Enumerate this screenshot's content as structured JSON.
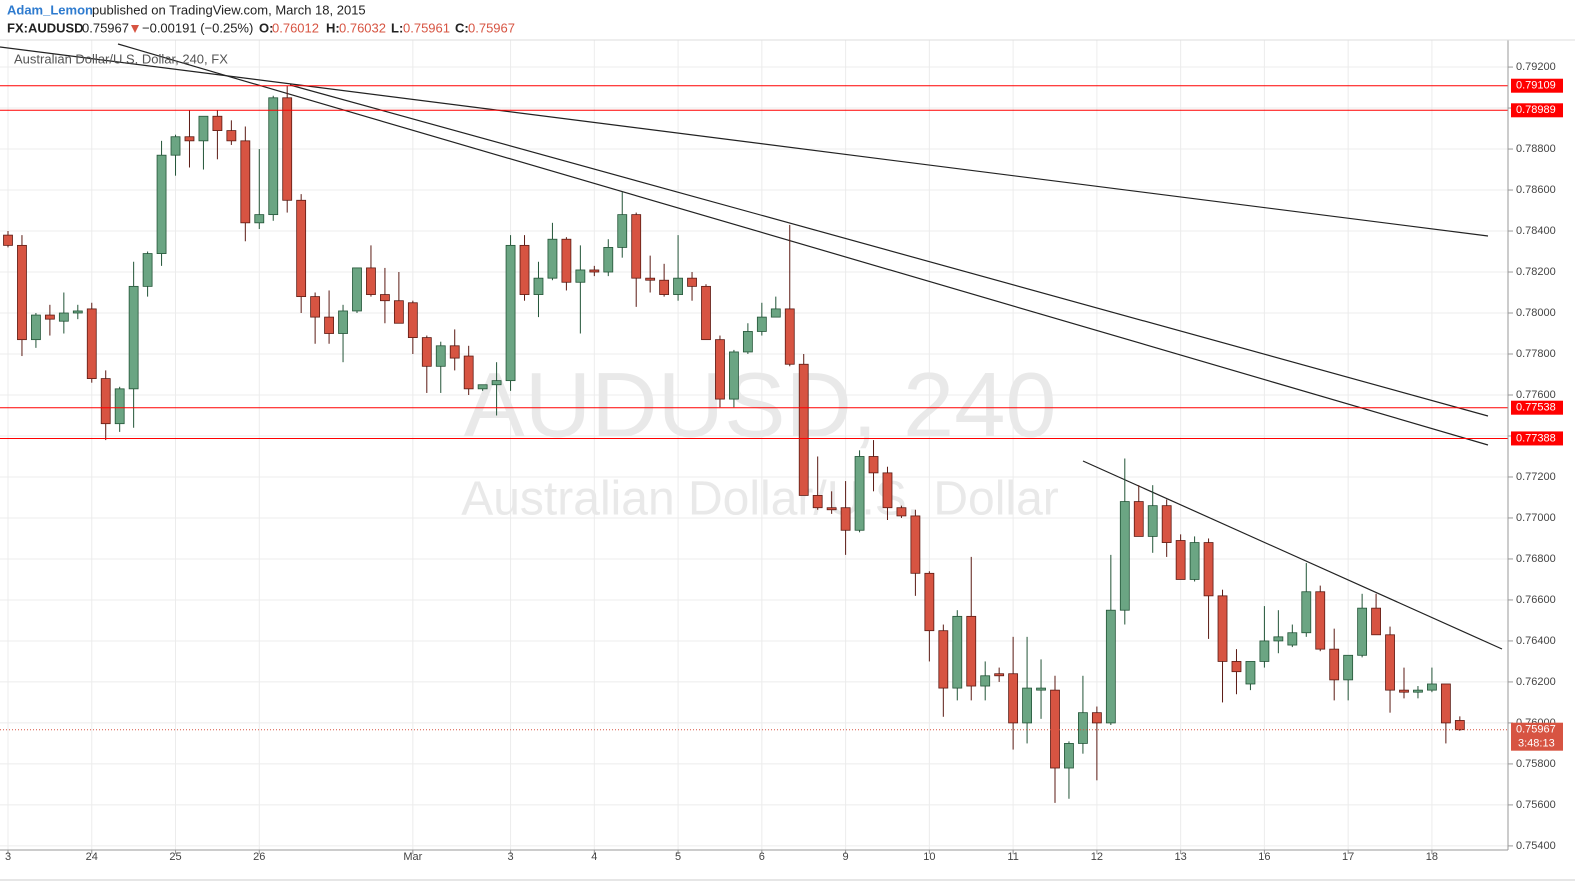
{
  "header": {
    "author": "Adam_Lemon",
    "published": "published on TradingView.com, March 18, 2015",
    "symbol": "FX:AUDUSD",
    "change": "−0.00191 (−0.25%)",
    "ohlc_labels": [
      "O:",
      "H:",
      "L:",
      "C:"
    ]
  },
  "chart_data": {
    "type": "candlestick",
    "title": "Australian Dollar/U.S. Dollar, 240, FX",
    "watermark": [
      "AUDUSD, 240",
      "Australian Dollar/U.S. Dollar"
    ],
    "categories": [
      "3",
      null,
      null,
      null,
      null,
      null,
      "24",
      null,
      null,
      null,
      null,
      null,
      "25",
      null,
      null,
      null,
      null,
      null,
      "26",
      null,
      null,
      null,
      null,
      null,
      null,
      null,
      null,
      null,
      null,
      "Mar",
      null,
      null,
      null,
      null,
      null,
      null,
      "3",
      null,
      null,
      null,
      null,
      null,
      "4",
      null,
      null,
      null,
      null,
      null,
      "5",
      null,
      null,
      null,
      null,
      null,
      "6",
      null,
      null,
      null,
      null,
      null,
      "9",
      null,
      null,
      null,
      null,
      null,
      "10",
      null,
      null,
      null,
      null,
      null,
      "11",
      null,
      null,
      null,
      null,
      null,
      "12",
      null,
      null,
      null,
      null,
      null,
      "13",
      null,
      null,
      null,
      null,
      null,
      "16",
      null,
      null,
      null,
      null,
      null,
      "17",
      null,
      null,
      null,
      null,
      null,
      "18",
      null,
      null
    ],
    "open": [
      0.7838,
      0.7833,
      0.7787,
      0.7799,
      0.7796,
      0.78,
      0.7802,
      0.7768,
      0.7746,
      0.7763,
      0.7813,
      0.7829,
      0.7877,
      0.7886,
      0.7884,
      0.7896,
      0.7889,
      0.7884,
      0.7844,
      0.7848,
      0.7905,
      0.7855,
      0.7808,
      0.7798,
      0.779,
      0.7801,
      0.7822,
      0.7809,
      0.7806,
      0.7805,
      0.7788,
      0.7774,
      0.7784,
      0.7779,
      0.7763,
      0.7765,
      0.7767,
      0.7833,
      0.7809,
      0.7817,
      0.7836,
      0.7815,
      0.7821,
      0.782,
      0.7832,
      0.7848,
      0.7817,
      0.7816,
      0.7809,
      0.7817,
      0.7813,
      0.7787,
      0.7758,
      0.7781,
      0.7791,
      0.7798,
      0.7802,
      0.7775,
      0.7711,
      0.7705,
      0.7705,
      0.7694,
      0.773,
      0.7722,
      0.7705,
      0.7701,
      0.7673,
      0.7645,
      0.7617,
      0.7652,
      0.7618,
      0.7624,
      0.7624,
      0.76,
      0.7616,
      0.7616,
      0.7578,
      0.759,
      0.7605,
      0.76,
      0.7655,
      0.7708,
      0.7691,
      0.7706,
      0.7689,
      0.767,
      0.7688,
      0.7662,
      0.763,
      0.7619,
      0.763,
      0.764,
      0.7638,
      0.7644,
      0.7664,
      0.7636,
      0.7621,
      0.7633,
      0.7656,
      0.7643,
      0.7616,
      0.7615,
      0.7616,
      0.7619,
      0.76012
    ],
    "high": [
      0.784,
      0.7838,
      0.78,
      0.7804,
      0.781,
      0.7804,
      0.7805,
      0.7772,
      0.7764,
      0.7825,
      0.783,
      0.7884,
      0.7887,
      0.7899,
      0.7896,
      0.7899,
      0.7894,
      0.7891,
      0.788,
      0.7906,
      0.7911,
      0.7858,
      0.781,
      0.7811,
      0.7804,
      0.7822,
      0.7833,
      0.7822,
      0.782,
      0.7806,
      0.7789,
      0.7786,
      0.7792,
      0.7784,
      0.7765,
      0.7776,
      0.7838,
      0.7838,
      0.7825,
      0.7844,
      0.7837,
      0.7833,
      0.7823,
      0.7836,
      0.7859,
      0.7849,
      0.7828,
      0.7824,
      0.7838,
      0.782,
      0.7814,
      0.7789,
      0.7782,
      0.7795,
      0.7805,
      0.7808,
      0.7843,
      0.778,
      0.773,
      0.7713,
      0.7718,
      0.7733,
      0.7738,
      0.7725,
      0.7706,
      0.7704,
      0.7674,
      0.7648,
      0.7655,
      0.7681,
      0.763,
      0.7627,
      0.7642,
      0.7642,
      0.7631,
      0.7623,
      0.7591,
      0.7623,
      0.7608,
      0.7682,
      0.7729,
      0.7716,
      0.7716,
      0.7709,
      0.7692,
      0.7691,
      0.769,
      0.7665,
      0.7636,
      0.763,
      0.7657,
      0.7655,
      0.7648,
      0.7678,
      0.7667,
      0.7646,
      0.7633,
      0.7663,
      0.7663,
      0.7647,
      0.7627,
      0.7618,
      0.7627,
      0.7619,
      0.76032
    ],
    "low": [
      0.7832,
      0.7779,
      0.7783,
      0.7789,
      0.779,
      0.7797,
      0.7766,
      0.7738,
      0.7742,
      0.7744,
      0.7808,
      0.7823,
      0.7867,
      0.7871,
      0.787,
      0.7875,
      0.7882,
      0.7835,
      0.7841,
      0.7845,
      0.7849,
      0.78,
      0.7785,
      0.7785,
      0.7776,
      0.78,
      0.7808,
      0.7795,
      0.7796,
      0.778,
      0.7761,
      0.7761,
      0.7772,
      0.776,
      0.7762,
      0.775,
      0.7762,
      0.7806,
      0.7798,
      0.7816,
      0.7811,
      0.779,
      0.7818,
      0.7818,
      0.7827,
      0.7803,
      0.781,
      0.7808,
      0.7806,
      0.7806,
      0.7787,
      0.7754,
      0.7754,
      0.778,
      0.7789,
      0.7798,
      0.7774,
      0.7711,
      0.7704,
      0.7702,
      0.7682,
      0.7693,
      0.7713,
      0.7699,
      0.77,
      0.7662,
      0.763,
      0.7603,
      0.7611,
      0.7611,
      0.7611,
      0.762,
      0.7587,
      0.759,
      0.7602,
      0.7561,
      0.7563,
      0.7585,
      0.7572,
      0.7599,
      0.7648,
      0.7691,
      0.7683,
      0.7681,
      0.767,
      0.7669,
      0.7641,
      0.761,
      0.7614,
      0.7616,
      0.7627,
      0.7634,
      0.7637,
      0.7642,
      0.7635,
      0.7611,
      0.7611,
      0.7632,
      0.7643,
      0.7605,
      0.7612,
      0.7612,
      0.7615,
      0.759,
      0.75961
    ],
    "close": [
      0.7833,
      0.7787,
      0.7799,
      0.7797,
      0.78,
      0.7801,
      0.7768,
      0.7746,
      0.7763,
      0.7813,
      0.7829,
      0.7877,
      0.7886,
      0.7884,
      0.7896,
      0.7889,
      0.7884,
      0.7844,
      0.7848,
      0.7905,
      0.7855,
      0.7808,
      0.7798,
      0.779,
      0.7801,
      0.7822,
      0.7809,
      0.7806,
      0.7795,
      0.7788,
      0.7774,
      0.7784,
      0.7778,
      0.7763,
      0.7765,
      0.7767,
      0.7833,
      0.7809,
      0.7817,
      0.7836,
      0.7815,
      0.7821,
      0.782,
      0.7832,
      0.7848,
      0.7817,
      0.7816,
      0.7809,
      0.7817,
      0.7813,
      0.7787,
      0.7758,
      0.7781,
      0.7791,
      0.7798,
      0.7802,
      0.7775,
      0.7711,
      0.7705,
      0.7704,
      0.7694,
      0.773,
      0.7722,
      0.7705,
      0.7701,
      0.7673,
      0.7645,
      0.7617,
      0.7652,
      0.7618,
      0.7623,
      0.7623,
      0.76,
      0.7617,
      0.7617,
      0.7578,
      0.759,
      0.7605,
      0.76,
      0.7655,
      0.7708,
      0.7691,
      0.7706,
      0.7688,
      0.767,
      0.7688,
      0.7662,
      0.763,
      0.7625,
      0.763,
      0.764,
      0.7642,
      0.7644,
      0.7664,
      0.7636,
      0.7621,
      0.7633,
      0.7656,
      0.7643,
      0.7616,
      0.7615,
      0.7616,
      0.7619,
      0.76,
      0.75967
    ],
    "up_color": "#6ba583",
    "down_color": "#d75442",
    "levels": [
      0.79109,
      0.78989,
      0.77538,
      0.77388
    ],
    "level_color": "#ff0000",
    "countdown": "3:48:13",
    "ylim": [
      0.7538,
      0.79332
    ],
    "yticks": [
      {
        "value": 0.792,
        "label": "0.79200"
      },
      {
        "value": 0.79,
        "label": "0.79000"
      },
      {
        "value": 0.788,
        "label": "0.78800"
      },
      {
        "value": 0.786,
        "label": "0.78600"
      },
      {
        "value": 0.784,
        "label": "0.78400"
      },
      {
        "value": 0.782,
        "label": "0.78200"
      },
      {
        "value": 0.78,
        "label": "0.78000"
      },
      {
        "value": 0.778,
        "label": "0.77800"
      },
      {
        "value": 0.776,
        "label": "0.77600"
      },
      {
        "value": 0.774,
        "label": "0.77400"
      },
      {
        "value": 0.772,
        "label": "0.77200"
      },
      {
        "value": 0.77,
        "label": "0.77000"
      },
      {
        "value": 0.768,
        "label": "0.76800"
      },
      {
        "value": 0.766,
        "label": "0.76600"
      },
      {
        "value": 0.764,
        "label": "0.76400"
      },
      {
        "value": 0.762,
        "label": "0.76200"
      },
      {
        "value": 0.76,
        "label": "0.76000"
      },
      {
        "value": 0.758,
        "label": "0.75800"
      },
      {
        "value": 0.756,
        "label": "0.75600"
      },
      {
        "value": 0.754,
        "label": "0.75400"
      }
    ],
    "grid": true
  }
}
